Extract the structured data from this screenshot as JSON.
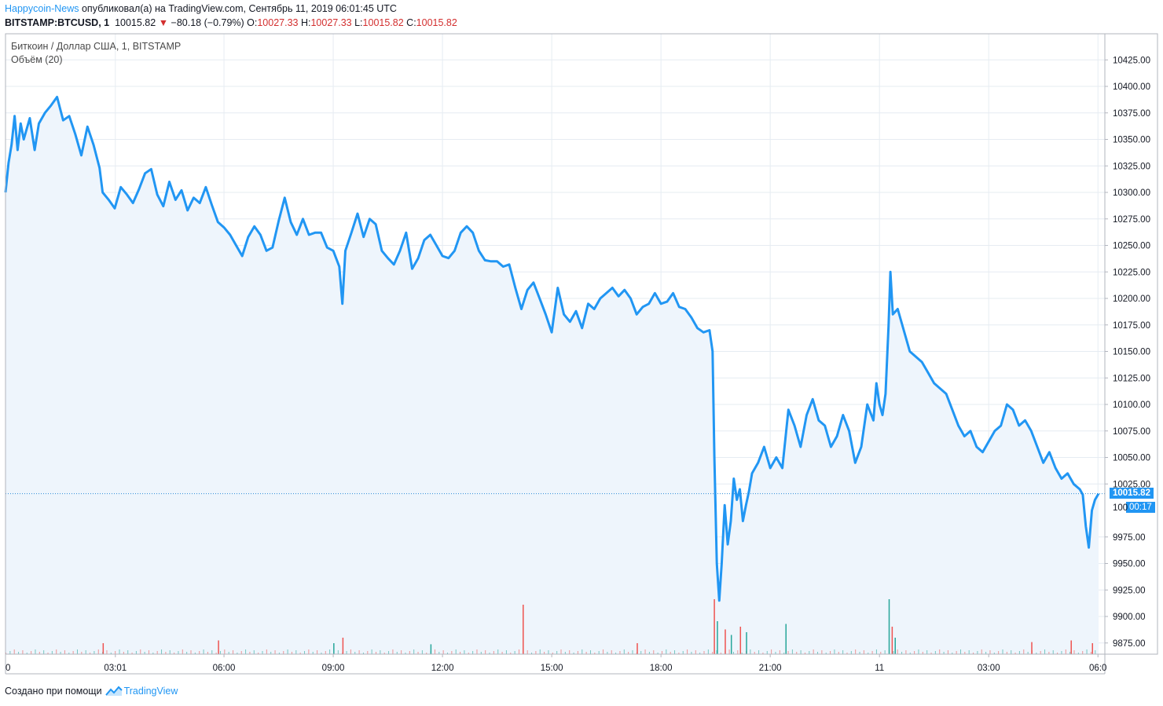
{
  "header": {
    "author": "Happycoin-News",
    "published_text": "опубликовал(а) на TradingView.com, Сентябрь 11, 2019 06:01:45 UTC",
    "symbol": "BITSTAMP:BTCUSD, 1",
    "last_price": "10015.82",
    "change": "−80.18 (−0.79%)",
    "o_label": "O:",
    "o_value": "10027.33",
    "h_label": "H:",
    "h_value": "10027.33",
    "l_label": "L:",
    "l_value": "10015.82",
    "c_label": "C:",
    "c_value": "10015.82"
  },
  "legend": {
    "title": "Биткоин / Доллар США, 1, BITSTAMP",
    "volume": "Объём (20)"
  },
  "price_tag": {
    "price": "10015.82",
    "countdown": "00:17",
    "partial_behind": "100"
  },
  "footer": {
    "created_with": "Создано при помощи",
    "brand": "TradingView"
  },
  "colors": {
    "line": "#2196f3",
    "fill": "#eef5fc",
    "grid": "#e6ecf2",
    "up": "#26a69a",
    "down": "#ef5350",
    "tag": "#2196f3"
  },
  "chart_data": {
    "type": "area",
    "title": "Биткоин / Доллар США, 1, BITSTAMP",
    "ylim": [
      9860,
      10440
    ],
    "y_ticks": [
      9875,
      9900,
      9925,
      9950,
      9975,
      10025,
      10050,
      10075,
      10100,
      10125,
      10150,
      10175,
      10200,
      10225,
      10250,
      10275,
      10300,
      10325,
      10350,
      10375,
      10400,
      10425
    ],
    "y_tick_labels": [
      "9875.00",
      "9900.00",
      "9925.00",
      "9950.00",
      "9975.00",
      "10025.00",
      "10050.00",
      "10075.00",
      "10100.00",
      "10125.00",
      "10150.00",
      "10175.00",
      "10200.00",
      "10225.00",
      "10250.00",
      "10275.00",
      "10300.00",
      "10325.00",
      "10350.00",
      "10375.00",
      "10400.00",
      "10425.00"
    ],
    "x_range": [
      0,
      1801
    ],
    "x_ticks": [
      {
        "t": 0,
        "label": "0"
      },
      {
        "t": 181,
        "label": "03:01"
      },
      {
        "t": 360,
        "label": "06:00"
      },
      {
        "t": 540,
        "label": "09:00"
      },
      {
        "t": 720,
        "label": "12:00"
      },
      {
        "t": 900,
        "label": "15:00"
      },
      {
        "t": 1080,
        "label": "18:00"
      },
      {
        "t": 1260,
        "label": "21:00"
      },
      {
        "t": 1440,
        "label": "11"
      },
      {
        "t": 1620,
        "label": "03:00"
      },
      {
        "t": 1800,
        "label": "06:0"
      }
    ],
    "x_units": "minutes since Sep 10, 2019 00:00 UTC",
    "series": [
      {
        "values": [
          [
            0,
            10300
          ],
          [
            5,
            10328
          ],
          [
            10,
            10345
          ],
          [
            15,
            10372
          ],
          [
            20,
            10340
          ],
          [
            25,
            10365
          ],
          [
            30,
            10350
          ],
          [
            40,
            10370
          ],
          [
            48,
            10340
          ],
          [
            55,
            10365
          ],
          [
            65,
            10375
          ],
          [
            75,
            10382
          ],
          [
            85,
            10390
          ],
          [
            95,
            10368
          ],
          [
            105,
            10372
          ],
          [
            115,
            10355
          ],
          [
            125,
            10335
          ],
          [
            135,
            10362
          ],
          [
            145,
            10345
          ],
          [
            155,
            10323
          ],
          [
            160,
            10300
          ],
          [
            170,
            10293
          ],
          [
            180,
            10285
          ],
          [
            190,
            10305
          ],
          [
            200,
            10298
          ],
          [
            210,
            10290
          ],
          [
            220,
            10303
          ],
          [
            230,
            10318
          ],
          [
            240,
            10322
          ],
          [
            250,
            10298
          ],
          [
            260,
            10287
          ],
          [
            270,
            10310
          ],
          [
            280,
            10293
          ],
          [
            290,
            10302
          ],
          [
            300,
            10283
          ],
          [
            310,
            10295
          ],
          [
            320,
            10290
          ],
          [
            330,
            10305
          ],
          [
            340,
            10288
          ],
          [
            350,
            10272
          ],
          [
            360,
            10267
          ],
          [
            370,
            10260
          ],
          [
            380,
            10250
          ],
          [
            390,
            10240
          ],
          [
            400,
            10258
          ],
          [
            410,
            10268
          ],
          [
            420,
            10260
          ],
          [
            430,
            10245
          ],
          [
            440,
            10248
          ],
          [
            450,
            10273
          ],
          [
            460,
            10295
          ],
          [
            470,
            10272
          ],
          [
            480,
            10260
          ],
          [
            490,
            10275
          ],
          [
            500,
            10260
          ],
          [
            510,
            10262
          ],
          [
            520,
            10262
          ],
          [
            530,
            10248
          ],
          [
            540,
            10245
          ],
          [
            550,
            10230
          ],
          [
            555,
            10195
          ],
          [
            560,
            10245
          ],
          [
            570,
            10262
          ],
          [
            580,
            10280
          ],
          [
            590,
            10258
          ],
          [
            600,
            10275
          ],
          [
            610,
            10270
          ],
          [
            620,
            10245
          ],
          [
            630,
            10238
          ],
          [
            640,
            10232
          ],
          [
            650,
            10245
          ],
          [
            660,
            10262
          ],
          [
            670,
            10228
          ],
          [
            680,
            10238
          ],
          [
            690,
            10255
          ],
          [
            700,
            10260
          ],
          [
            710,
            10250
          ],
          [
            720,
            10240
          ],
          [
            730,
            10238
          ],
          [
            740,
            10245
          ],
          [
            750,
            10262
          ],
          [
            760,
            10268
          ],
          [
            770,
            10262
          ],
          [
            780,
            10245
          ],
          [
            790,
            10236
          ],
          [
            800,
            10235
          ],
          [
            810,
            10235
          ],
          [
            820,
            10230
          ],
          [
            830,
            10232
          ],
          [
            840,
            10210
          ],
          [
            850,
            10190
          ],
          [
            860,
            10208
          ],
          [
            870,
            10215
          ],
          [
            880,
            10200
          ],
          [
            890,
            10185
          ],
          [
            900,
            10168
          ],
          [
            910,
            10210
          ],
          [
            920,
            10185
          ],
          [
            930,
            10178
          ],
          [
            940,
            10188
          ],
          [
            950,
            10172
          ],
          [
            960,
            10195
          ],
          [
            970,
            10190
          ],
          [
            980,
            10200
          ],
          [
            990,
            10205
          ],
          [
            1000,
            10210
          ],
          [
            1010,
            10202
          ],
          [
            1020,
            10208
          ],
          [
            1030,
            10200
          ],
          [
            1040,
            10185
          ],
          [
            1050,
            10192
          ],
          [
            1060,
            10195
          ],
          [
            1070,
            10205
          ],
          [
            1080,
            10195
          ],
          [
            1090,
            10197
          ],
          [
            1100,
            10205
          ],
          [
            1110,
            10192
          ],
          [
            1120,
            10190
          ],
          [
            1130,
            10182
          ],
          [
            1140,
            10172
          ],
          [
            1150,
            10168
          ],
          [
            1160,
            10170
          ],
          [
            1165,
            10150
          ],
          [
            1168,
            10050
          ],
          [
            1172,
            9950
          ],
          [
            1176,
            9915
          ],
          [
            1180,
            9950
          ],
          [
            1185,
            10005
          ],
          [
            1190,
            9968
          ],
          [
            1195,
            9990
          ],
          [
            1200,
            10030
          ],
          [
            1205,
            10010
          ],
          [
            1210,
            10020
          ],
          [
            1215,
            9990
          ],
          [
            1220,
            10005
          ],
          [
            1225,
            10018
          ],
          [
            1230,
            10035
          ],
          [
            1240,
            10045
          ],
          [
            1250,
            10060
          ],
          [
            1260,
            10040
          ],
          [
            1270,
            10050
          ],
          [
            1280,
            10040
          ],
          [
            1290,
            10095
          ],
          [
            1300,
            10080
          ],
          [
            1310,
            10060
          ],
          [
            1320,
            10090
          ],
          [
            1330,
            10105
          ],
          [
            1340,
            10085
          ],
          [
            1350,
            10080
          ],
          [
            1360,
            10060
          ],
          [
            1370,
            10070
          ],
          [
            1380,
            10090
          ],
          [
            1390,
            10075
          ],
          [
            1400,
            10045
          ],
          [
            1410,
            10060
          ],
          [
            1420,
            10100
          ],
          [
            1430,
            10085
          ],
          [
            1435,
            10120
          ],
          [
            1440,
            10100
          ],
          [
            1445,
            10090
          ],
          [
            1450,
            10110
          ],
          [
            1455,
            10175
          ],
          [
            1458,
            10225
          ],
          [
            1462,
            10185
          ],
          [
            1470,
            10190
          ],
          [
            1480,
            10170
          ],
          [
            1490,
            10150
          ],
          [
            1500,
            10145
          ],
          [
            1510,
            10140
          ],
          [
            1520,
            10130
          ],
          [
            1530,
            10120
          ],
          [
            1540,
            10115
          ],
          [
            1550,
            10110
          ],
          [
            1560,
            10095
          ],
          [
            1570,
            10080
          ],
          [
            1580,
            10070
          ],
          [
            1590,
            10075
          ],
          [
            1600,
            10060
          ],
          [
            1610,
            10055
          ],
          [
            1620,
            10065
          ],
          [
            1630,
            10075
          ],
          [
            1640,
            10080
          ],
          [
            1650,
            10100
          ],
          [
            1660,
            10095
          ],
          [
            1670,
            10080
          ],
          [
            1680,
            10085
          ],
          [
            1690,
            10075
          ],
          [
            1700,
            10060
          ],
          [
            1710,
            10045
          ],
          [
            1720,
            10055
          ],
          [
            1730,
            10040
          ],
          [
            1740,
            10030
          ],
          [
            1750,
            10035
          ],
          [
            1760,
            10025
          ],
          [
            1770,
            10020
          ],
          [
            1775,
            10015
          ],
          [
            1780,
            9985
          ],
          [
            1785,
            9965
          ],
          [
            1790,
            10000
          ],
          [
            1795,
            10010
          ],
          [
            1801,
            10015.82
          ]
        ]
      }
    ],
    "volume_spikes": [
      {
        "t": 852,
        "v": 0.9,
        "dir": "down"
      },
      {
        "t": 1167,
        "v": 1.0,
        "dir": "down"
      },
      {
        "t": 1172,
        "v": 0.6,
        "dir": "up"
      },
      {
        "t": 1185,
        "v": 0.45,
        "dir": "down"
      },
      {
        "t": 1195,
        "v": 0.35,
        "dir": "up"
      },
      {
        "t": 1210,
        "v": 0.5,
        "dir": "down"
      },
      {
        "t": 1220,
        "v": 0.4,
        "dir": "up"
      },
      {
        "t": 1285,
        "v": 0.55,
        "dir": "up"
      },
      {
        "t": 1455,
        "v": 1.0,
        "dir": "up"
      },
      {
        "t": 1460,
        "v": 0.5,
        "dir": "down"
      },
      {
        "t": 1465,
        "v": 0.3,
        "dir": "up"
      },
      {
        "t": 160,
        "v": 0.2,
        "dir": "down"
      },
      {
        "t": 350,
        "v": 0.25,
        "dir": "down"
      },
      {
        "t": 540,
        "v": 0.2,
        "dir": "up"
      },
      {
        "t": 555,
        "v": 0.3,
        "dir": "down"
      },
      {
        "t": 700,
        "v": 0.18,
        "dir": "up"
      },
      {
        "t": 1040,
        "v": 0.2,
        "dir": "down"
      },
      {
        "t": 1690,
        "v": 0.22,
        "dir": "down"
      },
      {
        "t": 1755,
        "v": 0.25,
        "dir": "down"
      },
      {
        "t": 1790,
        "v": 0.2,
        "dir": "down"
      }
    ]
  }
}
